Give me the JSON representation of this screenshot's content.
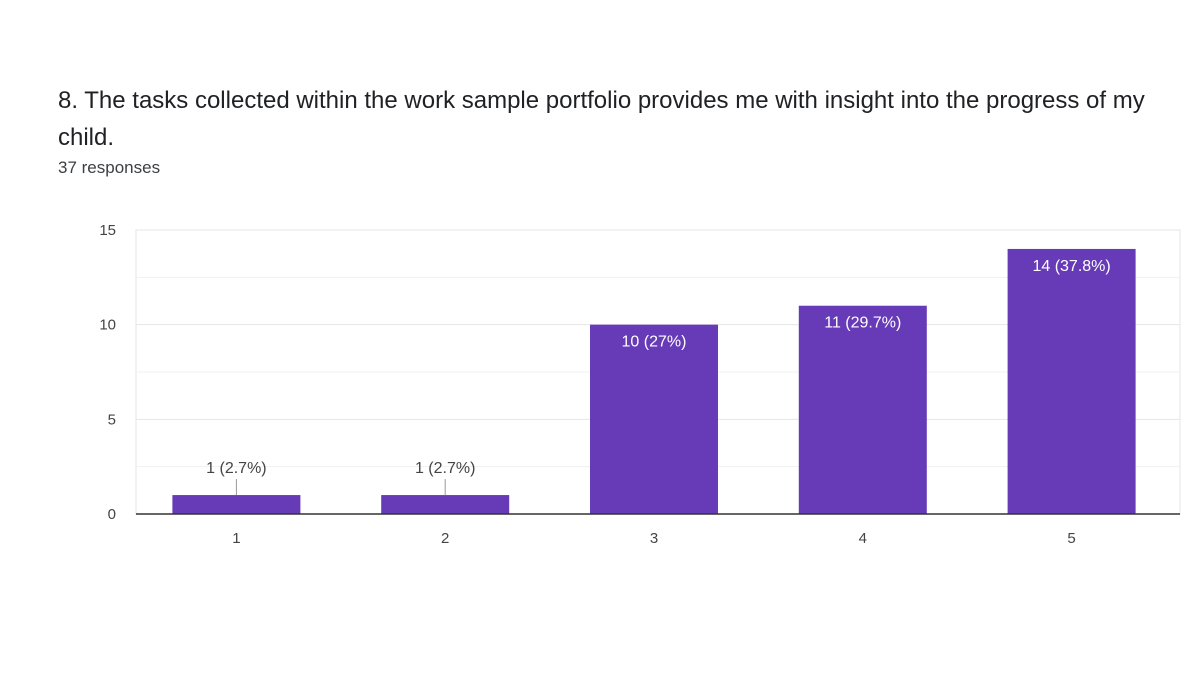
{
  "question": {
    "title": "8.  The tasks collected within the work sample portfolio provides me with insight into  the progress of my child.",
    "responses": "37 responses"
  },
  "colors": {
    "bar": "#673ab7",
    "gridline": "#e6e6e6",
    "axis": "#333333",
    "label_inside": "#ffffff",
    "label_outside": "#444444"
  },
  "chart_data": {
    "type": "bar",
    "categories": [
      "1",
      "2",
      "3",
      "4",
      "5"
    ],
    "values": [
      1,
      1,
      10,
      11,
      14
    ],
    "data_labels": [
      "1 (2.7%)",
      "1 (2.7%)",
      "10 (27%)",
      "11 (29.7%)",
      "14 (37.8%)"
    ],
    "y_ticks": [
      "0",
      "5",
      "10",
      "15"
    ],
    "ylim": [
      0,
      15
    ],
    "grid": true,
    "legend": "none"
  }
}
